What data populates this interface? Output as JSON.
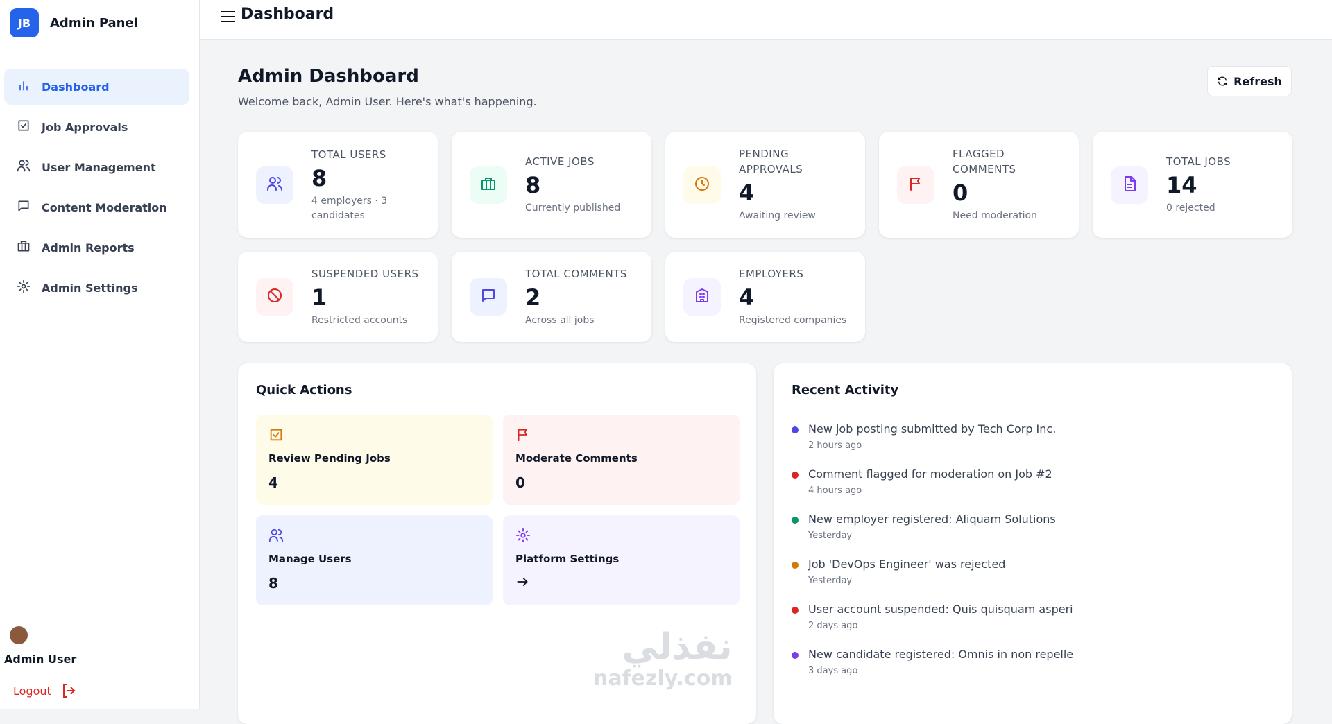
{
  "sidebar": {
    "initials": "JB",
    "title": "Admin Panel",
    "nav": [
      "Dashboard",
      "Job Approvals",
      "User Management",
      "Content Moderation",
      "Admin Reports",
      "Admin Settings"
    ],
    "user": "Admin User",
    "logout": "Logout"
  },
  "header": {
    "title": "Dashboard"
  },
  "page": {
    "title": "Admin Dashboard",
    "subtitle": "Welcome back, Admin User. Here's what's happening.",
    "refresh": "Refresh"
  },
  "stats": [
    {
      "label": "TOTAL USERS",
      "value": "8",
      "note": "4 employers · 3 candidates"
    },
    {
      "label": "ACTIVE JOBS",
      "value": "8",
      "note": "Currently published"
    },
    {
      "label": "PENDING APPROVALS",
      "value": "4",
      "note": "Awaiting review"
    },
    {
      "label": "FLAGGED COMMENTS",
      "value": "0",
      "note": "Need moderation"
    },
    {
      "label": "TOTAL JOBS",
      "value": "14",
      "note": "0 rejected"
    },
    {
      "label": "SUSPENDED USERS",
      "value": "1",
      "note": "Restricted accounts"
    },
    {
      "label": "TOTAL COMMENTS",
      "value": "2",
      "note": "Across all jobs"
    },
    {
      "label": "EMPLOYERS",
      "value": "4",
      "note": "Registered companies"
    }
  ],
  "quick_actions": {
    "title": "Quick Actions",
    "items": [
      {
        "label": "Review Pending Jobs",
        "value": "4"
      },
      {
        "label": "Moderate Comments",
        "value": "0"
      },
      {
        "label": "Manage Users",
        "value": "8"
      },
      {
        "label": "Platform Settings"
      }
    ]
  },
  "recent_activity": {
    "title": "Recent Activity",
    "items": [
      {
        "text": "New job posting submitted by Tech Corp Inc.",
        "time": "2 hours ago",
        "color": "#4f46e5"
      },
      {
        "text": "Comment flagged for moderation on Job #2",
        "time": "4 hours ago",
        "color": "#dc2626"
      },
      {
        "text": "New employer registered: Aliquam Solutions",
        "time": "Yesterday",
        "color": "#059669"
      },
      {
        "text": "Job 'DevOps Engineer' was rejected",
        "time": "Yesterday",
        "color": "#d97706"
      },
      {
        "text": "User account suspended: Quis quisquam asperi",
        "time": "2 days ago",
        "color": "#dc2626"
      },
      {
        "text": "New candidate registered: Omnis in non repelle",
        "time": "3 days ago",
        "color": "#7c3aed"
      }
    ]
  },
  "watermark": {
    "arabic": "نفذلي",
    "latin": "nafezly.com"
  }
}
